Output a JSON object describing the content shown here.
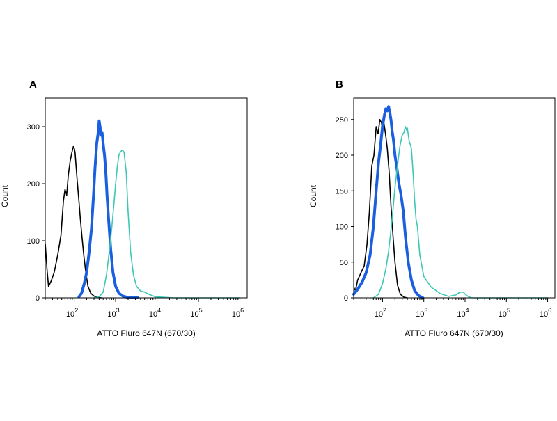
{
  "chart_data": [
    {
      "type": "line",
      "panel_label": "A",
      "xlabel": "ATTO Fluro 647N (670/30)",
      "ylabel": "Count",
      "x_scale": "log10",
      "xlim": [
        20,
        1500000
      ],
      "ylim": [
        0,
        350
      ],
      "x_ticks": [
        {
          "base": "10",
          "exp": "2",
          "value": 100
        },
        {
          "base": "10",
          "exp": "3",
          "value": 1000
        },
        {
          "base": "10",
          "exp": "4",
          "value": 10000
        },
        {
          "base": "10",
          "exp": "5",
          "value": 100000
        },
        {
          "base": "10",
          "exp": "6",
          "value": 1000000
        }
      ],
      "y_ticks": [
        {
          "label": "0",
          "value": 0
        },
        {
          "label": "100",
          "value": 100
        },
        {
          "label": "200",
          "value": 200
        },
        {
          "label": "300",
          "value": 300
        }
      ],
      "series": [
        {
          "name": "black",
          "color": "#000000",
          "width": 1.6,
          "x": [
            20,
            22,
            24,
            28,
            33,
            40,
            48,
            55,
            60,
            66,
            72,
            80,
            88,
            95,
            100,
            105,
            110,
            118,
            128,
            140,
            155,
            170,
            190,
            215,
            250,
            300,
            360,
            450
          ],
          "y": [
            95,
            50,
            20,
            30,
            45,
            75,
            110,
            170,
            190,
            180,
            215,
            240,
            255,
            265,
            262,
            255,
            235,
            205,
            175,
            140,
            105,
            75,
            45,
            20,
            8,
            3,
            1,
            0
          ]
        },
        {
          "name": "blue",
          "color": "#1a5fe0",
          "width": 4,
          "x": [
            130,
            150,
            175,
            200,
            225,
            260,
            290,
            320,
            350,
            380,
            400,
            420,
            440,
            470,
            500,
            540,
            580,
            620,
            680,
            760,
            860,
            1000,
            1200,
            1500,
            1900,
            2500,
            3500
          ],
          "y": [
            2,
            8,
            25,
            45,
            75,
            120,
            175,
            230,
            270,
            290,
            310,
            300,
            285,
            290,
            270,
            250,
            220,
            180,
            135,
            85,
            45,
            20,
            8,
            3,
            1,
            0,
            0
          ]
        },
        {
          "name": "teal",
          "color": "#3cc8b4",
          "width": 1.6,
          "x": [
            300,
            400,
            500,
            600,
            700,
            800,
            900,
            1000,
            1100,
            1200,
            1300,
            1400,
            1500,
            1600,
            1800,
            2000,
            2300,
            2700,
            3200,
            4000,
            5000,
            6500,
            9000,
            15000,
            25000,
            50000,
            1000000
          ],
          "y": [
            0,
            2,
            10,
            40,
            80,
            120,
            160,
            200,
            230,
            250,
            255,
            258,
            258,
            255,
            220,
            150,
            80,
            40,
            20,
            12,
            10,
            6,
            2,
            1,
            0,
            0,
            0
          ]
        }
      ]
    },
    {
      "type": "line",
      "panel_label": "B",
      "xlabel": "ATTO Fluro 647N (670/30)",
      "ylabel": "Count",
      "x_scale": "log10",
      "xlim": [
        20,
        1500000
      ],
      "ylim": [
        0,
        280
      ],
      "x_ticks": [
        {
          "base": "10",
          "exp": "2",
          "value": 100
        },
        {
          "base": "10",
          "exp": "3",
          "value": 1000
        },
        {
          "base": "10",
          "exp": "4",
          "value": 10000
        },
        {
          "base": "10",
          "exp": "5",
          "value": 100000
        },
        {
          "base": "10",
          "exp": "6",
          "value": 1000000
        }
      ],
      "y_ticks": [
        {
          "label": "0",
          "value": 0
        },
        {
          "label": "50",
          "value": 50
        },
        {
          "label": "100",
          "value": 100
        },
        {
          "label": "150",
          "value": 150
        },
        {
          "label": "200",
          "value": 200
        },
        {
          "label": "250",
          "value": 250
        }
      ],
      "series": [
        {
          "name": "black",
          "color": "#000000",
          "width": 1.6,
          "x": [
            20,
            22,
            25,
            30,
            36,
            42,
            48,
            55,
            62,
            70,
            78,
            86,
            95,
            100,
            108,
            118,
            130,
            145,
            160,
            180,
            200,
            230,
            270,
            330,
            400
          ],
          "y": [
            15,
            10,
            25,
            35,
            45,
            75,
            120,
            185,
            200,
            240,
            230,
            250,
            245,
            235,
            245,
            230,
            210,
            175,
            130,
            85,
            50,
            18,
            5,
            1,
            0
          ]
        },
        {
          "name": "blue",
          "color": "#1a5fe0",
          "width": 4,
          "x": [
            20,
            25,
            32,
            40,
            50,
            60,
            70,
            80,
            90,
            100,
            110,
            120,
            130,
            140,
            150,
            160,
            170,
            185,
            200,
            225,
            250,
            280,
            320,
            360,
            420,
            500,
            600,
            750,
            950
          ],
          "y": [
            5,
            12,
            22,
            35,
            60,
            100,
            150,
            190,
            215,
            240,
            255,
            265,
            262,
            268,
            260,
            250,
            235,
            220,
            200,
            180,
            160,
            145,
            120,
            85,
            50,
            25,
            10,
            3,
            0
          ]
        },
        {
          "name": "teal",
          "color": "#3cc8b4",
          "width": 1.6,
          "x": [
            60,
            80,
            100,
            120,
            140,
            160,
            180,
            200,
            230,
            260,
            280,
            300,
            330,
            360,
            380,
            400,
            440,
            500,
            550,
            600,
            650,
            700,
            800,
            1000,
            1500,
            2500,
            4000,
            6000,
            7500,
            9000,
            11000,
            14000,
            20000,
            1000000
          ],
          "y": [
            0,
            5,
            20,
            40,
            65,
            95,
            125,
            155,
            185,
            210,
            220,
            228,
            232,
            240,
            235,
            238,
            220,
            210,
            175,
            135,
            110,
            100,
            60,
            30,
            15,
            6,
            2,
            4,
            8,
            8,
            3,
            0,
            0,
            0
          ]
        }
      ]
    }
  ]
}
